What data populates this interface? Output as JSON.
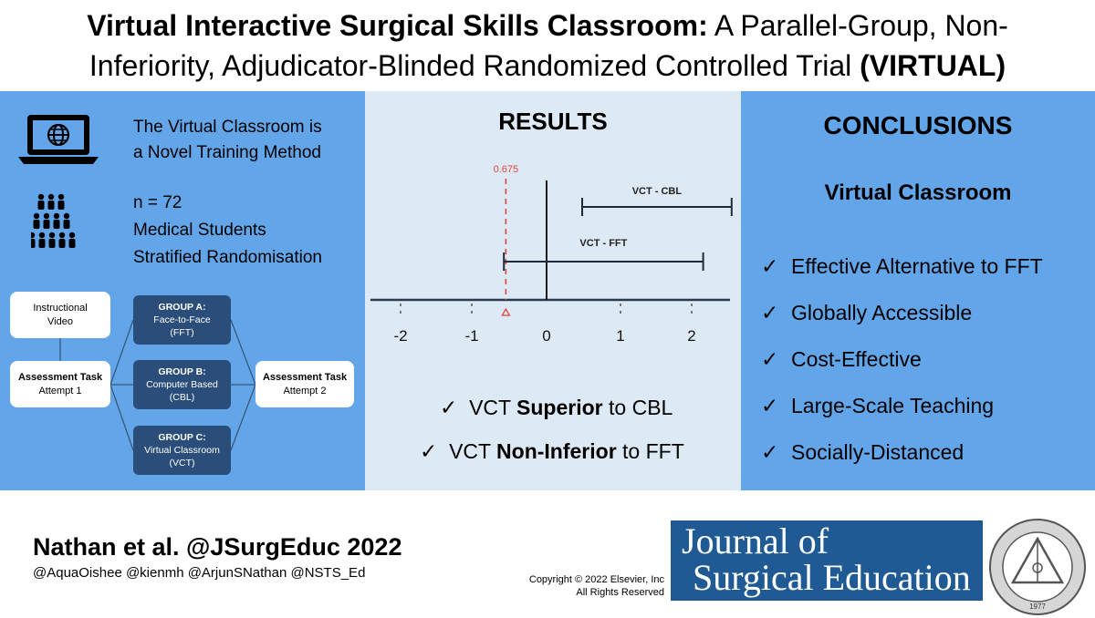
{
  "title": {
    "bold_part": "Virtual Interactive Surgical Skills Classroom:",
    "part1": " A Parallel-Group, Non-",
    "part2": "Inferiority, Adjudicator-Blinded Randomized Controlled Trial ",
    "bold_end": "(VIRTUAL)"
  },
  "left": {
    "line1": "The Virtual Classroom is",
    "line2": "a Novel Training Method",
    "n": "n = 72",
    "students": "Medical Students",
    "strat": "Stratified Randomisation",
    "flow": {
      "video_line1": "Instructional",
      "video_line2": "Video",
      "assess1_title": "Assessment Task",
      "assess1_sub": "Attempt 1",
      "assess2_title": "Assessment Task",
      "assess2_sub": "Attempt 2",
      "groups": [
        {
          "name": "GROUP A:",
          "line1": "Face-to-Face",
          "line2": "(FFT)"
        },
        {
          "name": "GROUP B:",
          "line1": "Computer Based",
          "line2": "(CBL)"
        },
        {
          "name": "GROUP C:",
          "line1": "Virtual Classroom",
          "line2": "(VCT)"
        }
      ]
    }
  },
  "results": {
    "title": "RESULTS",
    "margin_label": "0.675",
    "ticks": [
      "-2",
      "-1",
      "0",
      "1",
      "2"
    ],
    "ci_labels": [
      "VCT - CBL",
      "VCT - FFT"
    ],
    "check1_pre": "VCT ",
    "check1_bold": "Superior",
    "check1_post": " to CBL",
    "check2_pre": "VCT ",
    "check2_bold": "Non-Inferior",
    "check2_post": " to FFT",
    "check_mark": "✓",
    "colors": {
      "margin": "#e0463a",
      "axis": "#2b3a4e"
    }
  },
  "chart_data": {
    "type": "scatter",
    "categories": [
      "VCT - CBL",
      "VCT - FFT"
    ],
    "x_ticks": [
      -2,
      -1,
      0,
      1,
      2
    ],
    "series": [
      {
        "name": "VCT - CBL",
        "lower": 0.5,
        "upper": 2.6
      },
      {
        "name": "VCT - FFT",
        "lower": -0.6,
        "upper": 2.2
      }
    ],
    "margin": -0.675,
    "margin_label": "0.675"
  },
  "conclusions": {
    "title": "CONCLUSIONS",
    "subtitle": "Virtual Classroom",
    "check_mark": "✓",
    "items": [
      "Effective Alternative to FFT",
      "Globally Accessible",
      "Cost-Effective",
      "Large-Scale Teaching",
      "Socially-Distanced"
    ]
  },
  "footer": {
    "citation": "Nathan et al. @JSurgEduc 2022",
    "handles": "@AquaOishee @kienmh @ArjunSNathan @NSTS_Ed",
    "copyright_line1": "Copyright © 2022  Elsevier, Inc",
    "copyright_line2": "All Rights Reserved",
    "journal_line1": "Journal of",
    "journal_line2": "Surgical Education",
    "seal_year": "1977"
  },
  "colors": {
    "panel_blue": "#62a6e9",
    "panel_light": "#dde9f5",
    "group_navy": "#2a4d7a",
    "journal_blue": "#1f5a94"
  }
}
